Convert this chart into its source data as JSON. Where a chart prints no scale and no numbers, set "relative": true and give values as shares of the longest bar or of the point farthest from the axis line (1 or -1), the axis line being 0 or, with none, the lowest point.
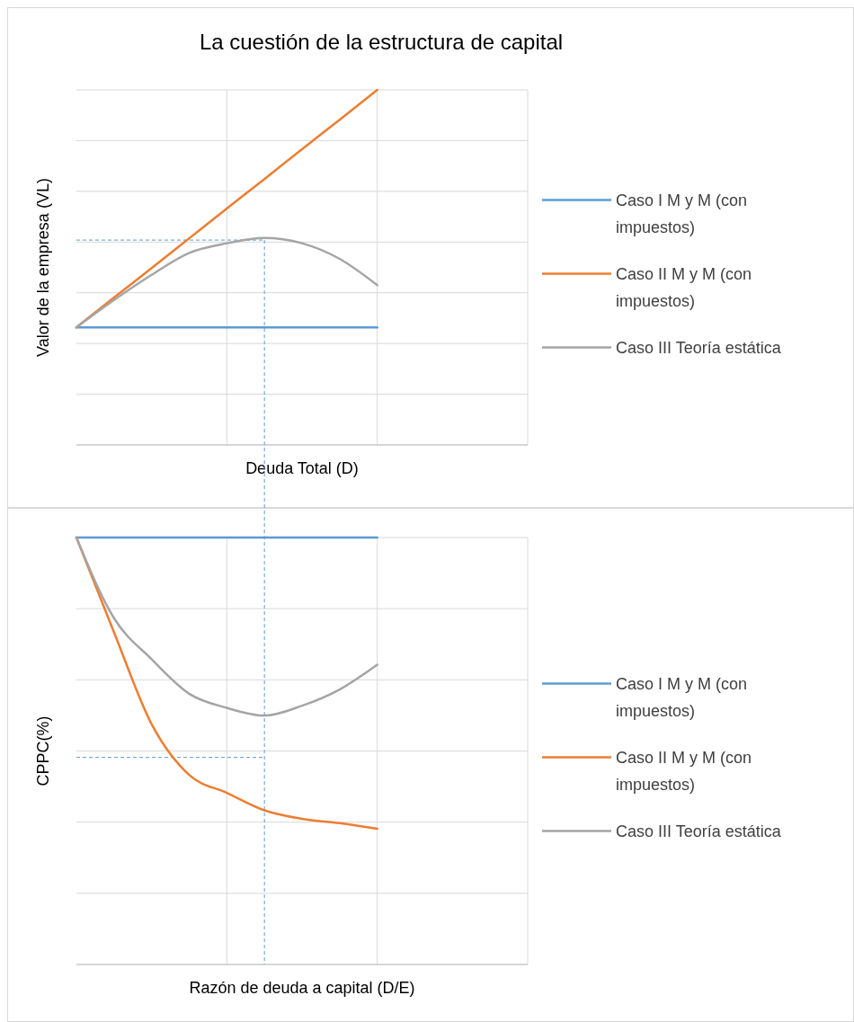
{
  "chart_data": [
    {
      "type": "line",
      "title": "La cuestión de la estructura de capital",
      "xlabel": "Deuda Total (D)",
      "ylabel": "Valor de la empresa (VL)",
      "relative": true,
      "grid": true,
      "legend": "right",
      "categories": [
        null,
        null,
        null,
        null,
        null,
        null,
        null,
        null,
        null,
        null,
        null,
        null,
        null
      ],
      "series": [
        {
          "name": "Caso I M y M (con impuestos)",
          "color": "#5b9bd5",
          "values": [
            0.331,
            0.331,
            0.331,
            0.331,
            0.331,
            0.331,
            0.331,
            0.331,
            0.331,
            null,
            null,
            null,
            null
          ]
        },
        {
          "name": "Caso II M y M (con impuestos)",
          "color": "#ed7d31",
          "values": [
            0.331,
            0.415,
            0.498,
            0.582,
            0.666,
            0.749,
            0.833,
            0.916,
            1,
            null,
            null,
            null,
            null
          ]
        },
        {
          "name": "Caso III Teoría estática",
          "color": "#a5a5a5",
          "values": [
            0.331,
            0.408,
            0.479,
            0.541,
            0.568,
            0.583,
            0.568,
            0.524,
            0.45,
            null,
            null,
            null,
            null
          ]
        }
      ],
      "ref_lines": [
        {
          "axis": "y",
          "value": 0.577,
          "color": "#5b9bd5",
          "line_style": "dashed"
        }
      ]
    },
    {
      "type": "line",
      "xlabel": "Razón de deuda a capital (D/E)",
      "ylabel": "CPPC(%)",
      "relative": true,
      "grid": true,
      "legend": "right",
      "categories": [
        null,
        null,
        null,
        null,
        null,
        null,
        null,
        null,
        null,
        null,
        null,
        null,
        null
      ],
      "series": [
        {
          "name": "Caso I M y M (con impuestos)",
          "color": "#5b9bd5",
          "values": [
            1,
            1,
            1,
            1,
            1,
            1,
            1,
            1,
            1,
            null,
            null,
            null,
            null
          ]
        },
        {
          "name": "Caso II M y M (con impuestos)",
          "color": "#ed7d31",
          "values": [
            1,
            0.778,
            0.563,
            0.444,
            0.402,
            0.361,
            0.341,
            0.331,
            0.318,
            null,
            null,
            null,
            null
          ]
        },
        {
          "name": "Caso III Teoría estática",
          "color": "#a5a5a5",
          "values": [
            1,
            0.811,
            0.715,
            0.634,
            0.601,
            0.583,
            0.606,
            0.644,
            0.702,
            null,
            null,
            null,
            null
          ]
        }
      ],
      "ref_lines": [
        {
          "axis": "y",
          "value": 0.485,
          "color": "#5b9bd5",
          "line_style": "dashed"
        }
      ]
    }
  ]
}
